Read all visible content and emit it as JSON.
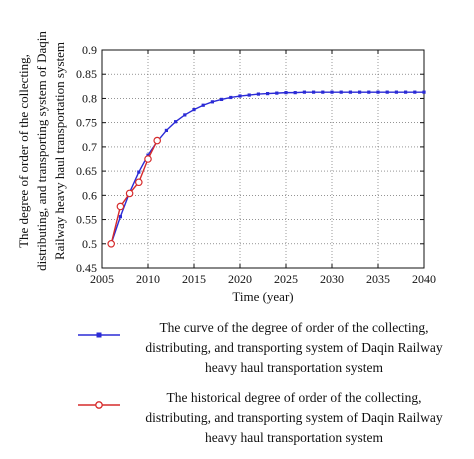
{
  "chart_data": {
    "type": "line",
    "xlabel": "Time (year)",
    "ylabel": "The degree of order of the collecting, distributing, and transporting system of Daqin Railway heavy haul transportation system",
    "ylabel_lines": [
      "The degree of order of the collecting,",
      "distributing, and transporting system of Daqin",
      "Railway heavy haul transportation system"
    ],
    "xlim": [
      2005,
      2040
    ],
    "ylim": [
      0.45,
      0.9
    ],
    "xticks": [
      2005,
      2010,
      2015,
      2020,
      2025,
      2030,
      2035,
      2040
    ],
    "yticks": [
      0.45,
      0.5,
      0.55,
      0.6,
      0.65,
      0.7,
      0.75,
      0.8,
      0.85,
      0.9
    ],
    "xtick_labels": [
      "2005",
      "2010",
      "2015",
      "2020",
      "2025",
      "2030",
      "2035",
      "2040"
    ],
    "ytick_labels": [
      "0.45",
      "0.5",
      "0.55",
      "0.6",
      "0.65",
      "0.7",
      "0.75",
      "0.8",
      "0.85",
      "0.9"
    ],
    "legend_placement": "below",
    "series": [
      {
        "name": "The curve of the degree of order of the collecting, distributing, and transporting system of Daqin Railway heavy haul transportation system",
        "name_lines": [
          "The curve of the degree of order of the collecting,",
          "distributing, and transporting system of Daqin Railway",
          "heavy haul transportation system"
        ],
        "color": "#2b2bd6",
        "marker": "square",
        "x": [
          2006,
          2007,
          2008,
          2009,
          2010,
          2011,
          2012,
          2013,
          2014,
          2015,
          2016,
          2017,
          2018,
          2019,
          2020,
          2021,
          2022,
          2023,
          2024,
          2025,
          2026,
          2027,
          2028,
          2029,
          2030,
          2031,
          2032,
          2033,
          2034,
          2035,
          2036,
          2037,
          2038,
          2039,
          2040
        ],
        "y": [
          0.5,
          0.556,
          0.606,
          0.648,
          0.683,
          0.711,
          0.734,
          0.752,
          0.766,
          0.777,
          0.786,
          0.793,
          0.798,
          0.802,
          0.805,
          0.807,
          0.809,
          0.81,
          0.811,
          0.812,
          0.812,
          0.813,
          0.813,
          0.813,
          0.813,
          0.813,
          0.813,
          0.813,
          0.813,
          0.813,
          0.813,
          0.813,
          0.813,
          0.813,
          0.813
        ]
      },
      {
        "name": "The historical degree of order of the collecting, distributing, and transporting system of Daqin Railway heavy haul transportation system",
        "name_lines": [
          "The historical degree of order of the collecting,",
          "distributing, and transporting system of Daqin Railway",
          "heavy haul transportation system"
        ],
        "color": "#d62b2b",
        "marker": "circle",
        "x": [
          2006,
          2007,
          2008,
          2009,
          2010,
          2011
        ],
        "y": [
          0.5,
          0.577,
          0.604,
          0.627,
          0.675,
          0.713
        ]
      }
    ]
  }
}
